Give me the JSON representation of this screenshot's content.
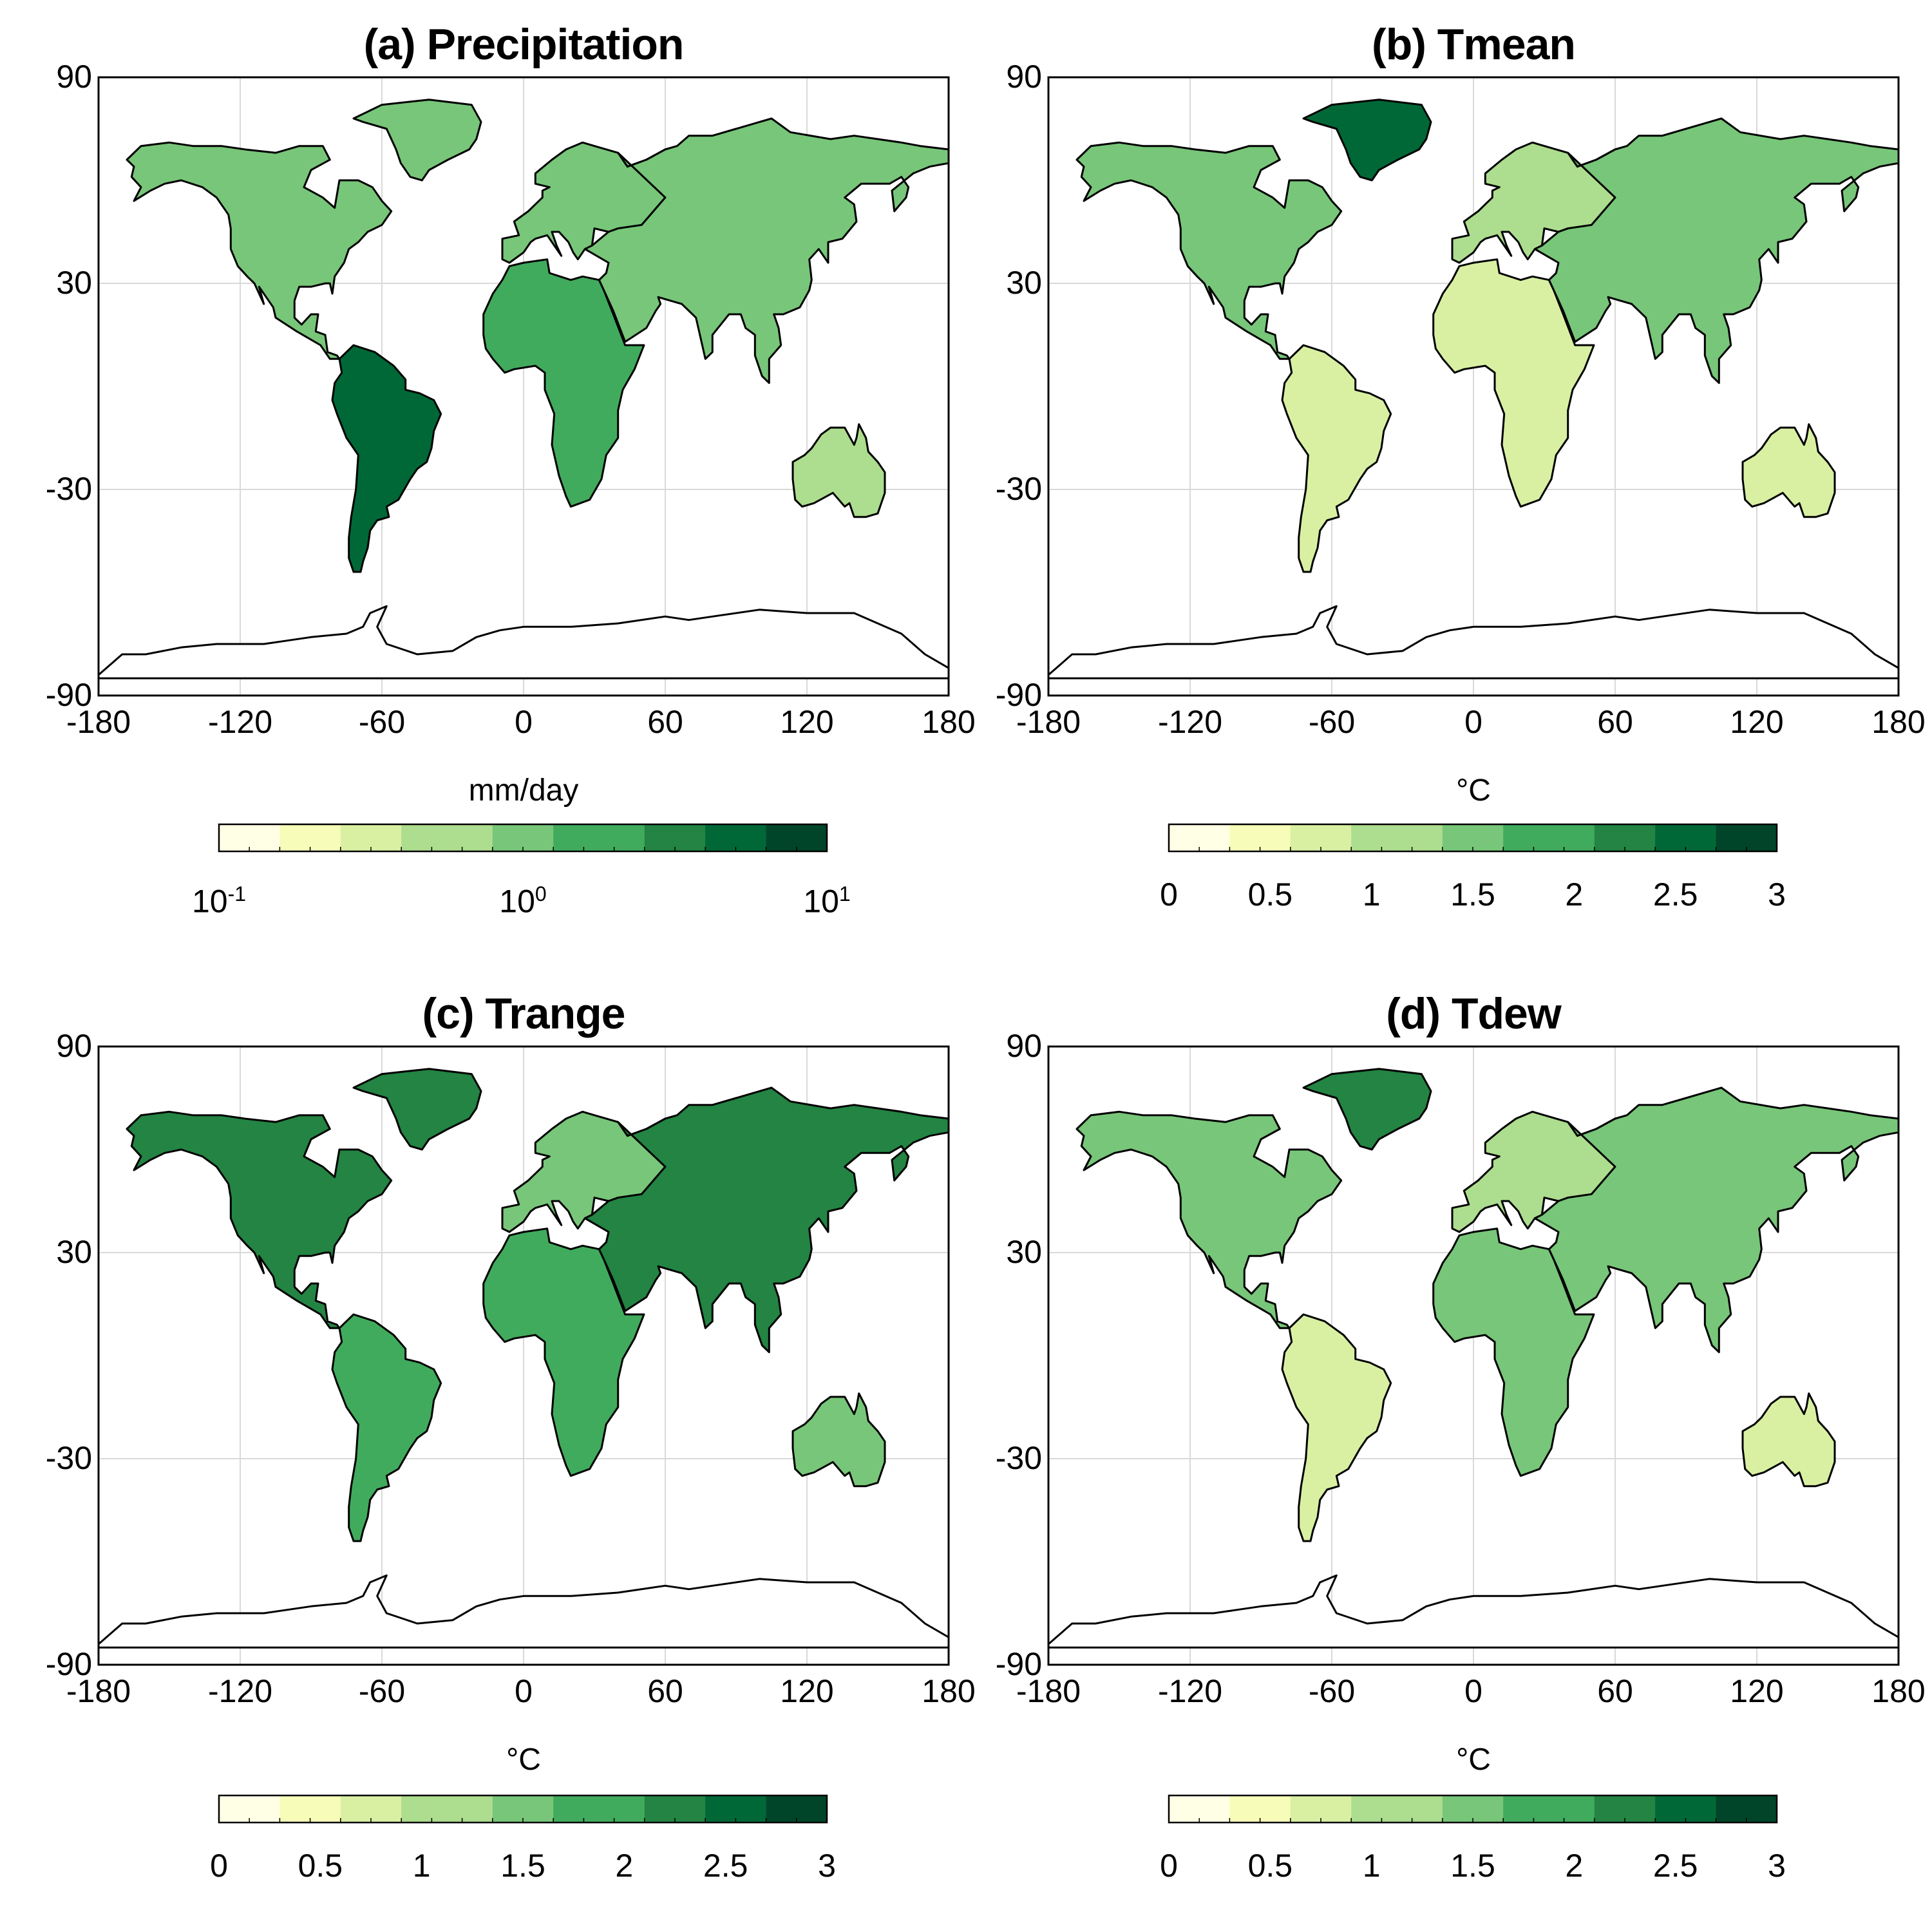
{
  "colors": {
    "ramp": [
      "#ffffe5",
      "#f7fcb9",
      "#d9f0a3",
      "#addd8e",
      "#78c679",
      "#41ab5d",
      "#238443",
      "#006837",
      "#004529"
    ],
    "coast": "#000000",
    "grid": "#d9d9d9",
    "frame": "#000000"
  },
  "axes": {
    "x_ticks": [
      "-180",
      "-120",
      "-60",
      "0",
      "60",
      "120",
      "180"
    ],
    "y_ticks": [
      "90",
      "30",
      "-30",
      "-90"
    ]
  },
  "panels": [
    {
      "title": "(a) Precipitation",
      "colorbar": {
        "label": "mm/day",
        "scale": "log",
        "range": [
          0.1,
          10
        ],
        "ticks": [
          {
            "base": "10",
            "exp": "-1"
          },
          {
            "base": "10",
            "exp": "0"
          },
          {
            "base": "10",
            "exp": "1"
          }
        ]
      },
      "field_levels": {
        "north_america": 0.45,
        "south_america": 0.85,
        "africa": 0.6,
        "europe": 0.5,
        "asia": 0.5,
        "australia": 0.35,
        "greenland": 0.45,
        "antarctica": 0.0
      }
    },
    {
      "title": "(b) Tmean",
      "colorbar": {
        "label": "°C",
        "scale": "linear",
        "range": [
          0,
          3
        ],
        "ticks": [
          "0",
          "0.5",
          "1",
          "1.5",
          "2",
          "2.5",
          "3"
        ]
      },
      "field_levels": {
        "north_america": 0.55,
        "south_america": 0.3,
        "africa": 0.25,
        "europe": 0.4,
        "asia": 0.5,
        "australia": 0.25,
        "greenland": 0.85,
        "antarctica": 0.0
      }
    },
    {
      "title": "(c) Trange",
      "colorbar": {
        "label": "°C",
        "scale": "linear",
        "range": [
          0,
          3
        ],
        "ticks": [
          "0",
          "0.5",
          "1",
          "1.5",
          "2",
          "2.5",
          "3"
        ]
      },
      "field_levels": {
        "north_america": 0.75,
        "south_america": 0.6,
        "africa": 0.65,
        "europe": 0.5,
        "asia": 0.7,
        "australia": 0.55,
        "greenland": 0.7,
        "antarctica": 0.0
      }
    },
    {
      "title": "(d) Tdew",
      "colorbar": {
        "label": "°C",
        "scale": "linear",
        "range": [
          0,
          3
        ],
        "ticks": [
          "0",
          "0.5",
          "1",
          "1.5",
          "2",
          "2.5",
          "3"
        ]
      },
      "field_levels": {
        "north_america": 0.55,
        "south_america": 0.3,
        "africa": 0.5,
        "europe": 0.4,
        "asia": 0.55,
        "australia": 0.3,
        "greenland": 0.8,
        "antarctica": 0.0
      }
    }
  ]
}
